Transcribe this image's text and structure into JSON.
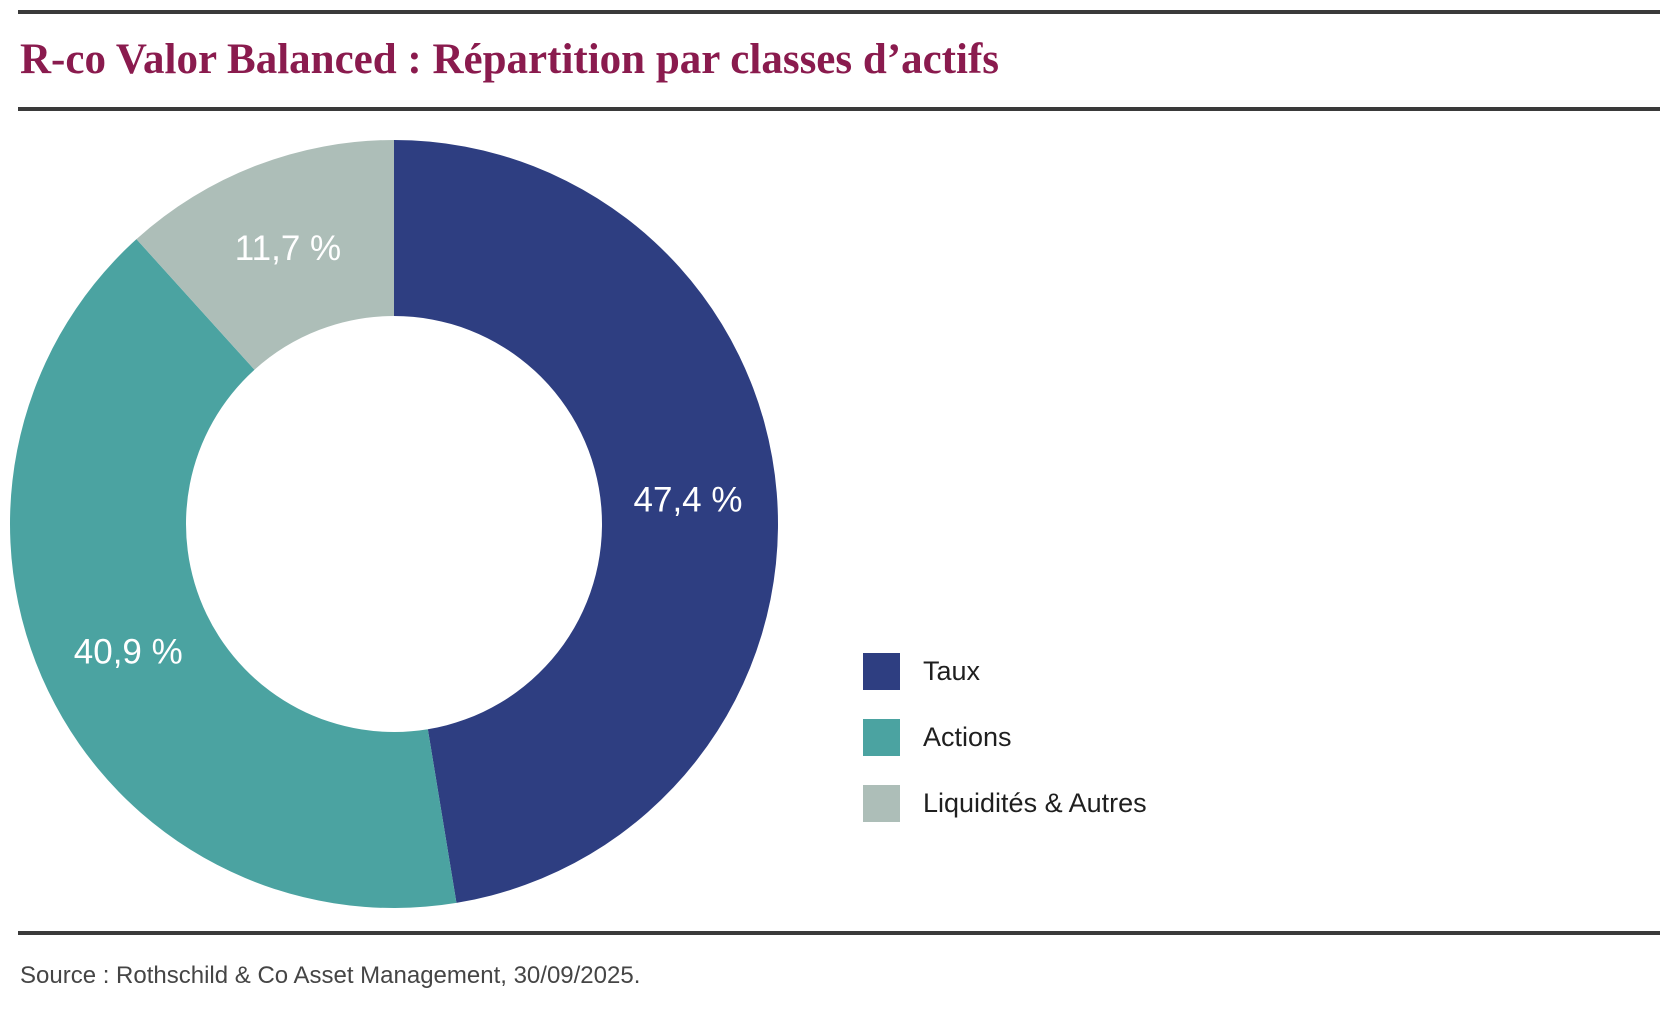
{
  "header": {
    "title": "R-co Valor Balanced : Répartition par classes d’actifs",
    "title_color": "#8a1b4e"
  },
  "chart_data": {
    "type": "pie",
    "subtype": "donut",
    "title": "R-co Valor Balanced : Répartition par classes d’actifs",
    "start_angle_deg": 0,
    "direction": "clockwise",
    "legend_position": "right",
    "series": [
      {
        "name": "Taux",
        "value": 47.4,
        "label": "47,4 %",
        "color": "#2e3e81"
      },
      {
        "name": "Actions",
        "value": 40.9,
        "label": "40,9 %",
        "color": "#4ba3a1"
      },
      {
        "name": "Liquidités & Autres",
        "value": 11.7,
        "label": "11,7 %",
        "color": "#adbeb8"
      }
    ]
  },
  "footer": {
    "source": "Source : Rothschild & Co Asset Management, 30/09/2025."
  }
}
